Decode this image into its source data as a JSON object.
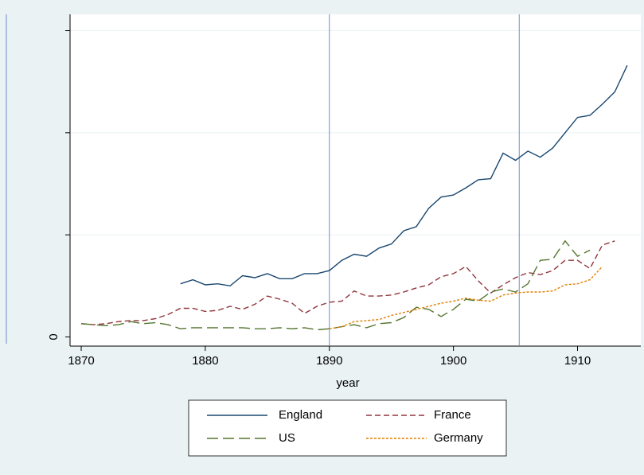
{
  "chart_data": {
    "type": "line",
    "x_label": "year",
    "x": [
      1870,
      1871,
      1872,
      1873,
      1874,
      1875,
      1876,
      1877,
      1878,
      1879,
      1880,
      1881,
      1882,
      1883,
      1884,
      1885,
      1886,
      1887,
      1888,
      1889,
      1890,
      1891,
      1892,
      1893,
      1894,
      1895,
      1896,
      1897,
      1898,
      1899,
      1900,
      1901,
      1902,
      1903,
      1904,
      1905,
      1906,
      1907,
      1908,
      1909,
      1910,
      1911,
      1912,
      1913,
      1914
    ],
    "series": [
      {
        "name": "England",
        "color": "#1a476f",
        "dash": "none",
        "values": [
          null,
          null,
          null,
          null,
          null,
          null,
          null,
          null,
          0.52,
          0.56,
          0.51,
          0.52,
          0.5,
          0.6,
          0.58,
          0.62,
          0.57,
          0.57,
          0.62,
          0.62,
          0.65,
          0.75,
          0.81,
          0.79,
          0.87,
          0.91,
          1.04,
          1.08,
          1.26,
          1.37,
          1.39,
          1.46,
          1.54,
          1.55,
          1.8,
          1.73,
          1.82,
          1.76,
          1.85,
          2.0,
          2.15,
          2.17,
          2.28,
          2.4,
          2.66
        ]
      },
      {
        "name": "France",
        "color": "#90353b",
        "dash": "7,4",
        "values": [
          0.13,
          0.12,
          0.13,
          0.15,
          0.16,
          0.16,
          0.18,
          0.22,
          0.28,
          0.28,
          0.25,
          0.26,
          0.3,
          0.27,
          0.32,
          0.4,
          0.37,
          0.33,
          0.23,
          0.3,
          0.34,
          0.35,
          0.45,
          0.4,
          0.4,
          0.41,
          0.44,
          0.48,
          0.51,
          0.59,
          0.62,
          0.69,
          0.55,
          0.43,
          0.51,
          0.58,
          0.63,
          0.61,
          0.65,
          0.75,
          0.75,
          0.67,
          0.9,
          0.94,
          null
        ]
      },
      {
        "name": "US",
        "color": "#55752f",
        "dash": "14,6",
        "values": [
          0.13,
          0.12,
          0.11,
          0.12,
          0.15,
          0.13,
          0.14,
          0.12,
          0.08,
          0.09,
          0.09,
          0.09,
          0.09,
          0.09,
          0.08,
          0.08,
          0.09,
          0.08,
          0.09,
          0.07,
          0.08,
          0.1,
          0.12,
          0.09,
          0.13,
          0.14,
          0.19,
          0.29,
          0.27,
          0.2,
          0.27,
          0.37,
          0.35,
          0.44,
          0.47,
          0.44,
          0.52,
          0.75,
          0.76,
          0.94,
          0.79,
          0.85,
          null,
          null,
          null
        ]
      },
      {
        "name": "Germany",
        "color": "#e37e00",
        "dash": "3,2",
        "values": [
          null,
          null,
          null,
          null,
          null,
          null,
          null,
          null,
          null,
          null,
          null,
          null,
          null,
          null,
          null,
          null,
          null,
          null,
          null,
          null,
          0.08,
          0.1,
          0.15,
          0.16,
          0.17,
          0.21,
          0.24,
          0.27,
          0.3,
          0.33,
          0.35,
          0.38,
          0.36,
          0.35,
          0.41,
          0.43,
          0.44,
          0.44,
          0.45,
          0.51,
          0.52,
          0.56,
          0.69,
          null,
          null
        ]
      }
    ],
    "reference_lines": [
      1890,
      1905.3
    ],
    "xlim": [
      1869.1,
      1915.1
    ],
    "xticks": [
      1870,
      1880,
      1890,
      1900,
      1910
    ],
    "ylim": [
      -0.09,
      3.16
    ],
    "yticks": [
      0,
      {
        "value": 1,
        "label": null
      },
      {
        "value": 2,
        "label": null
      },
      {
        "value": 3,
        "label": null
      }
    ],
    "grid": true
  }
}
